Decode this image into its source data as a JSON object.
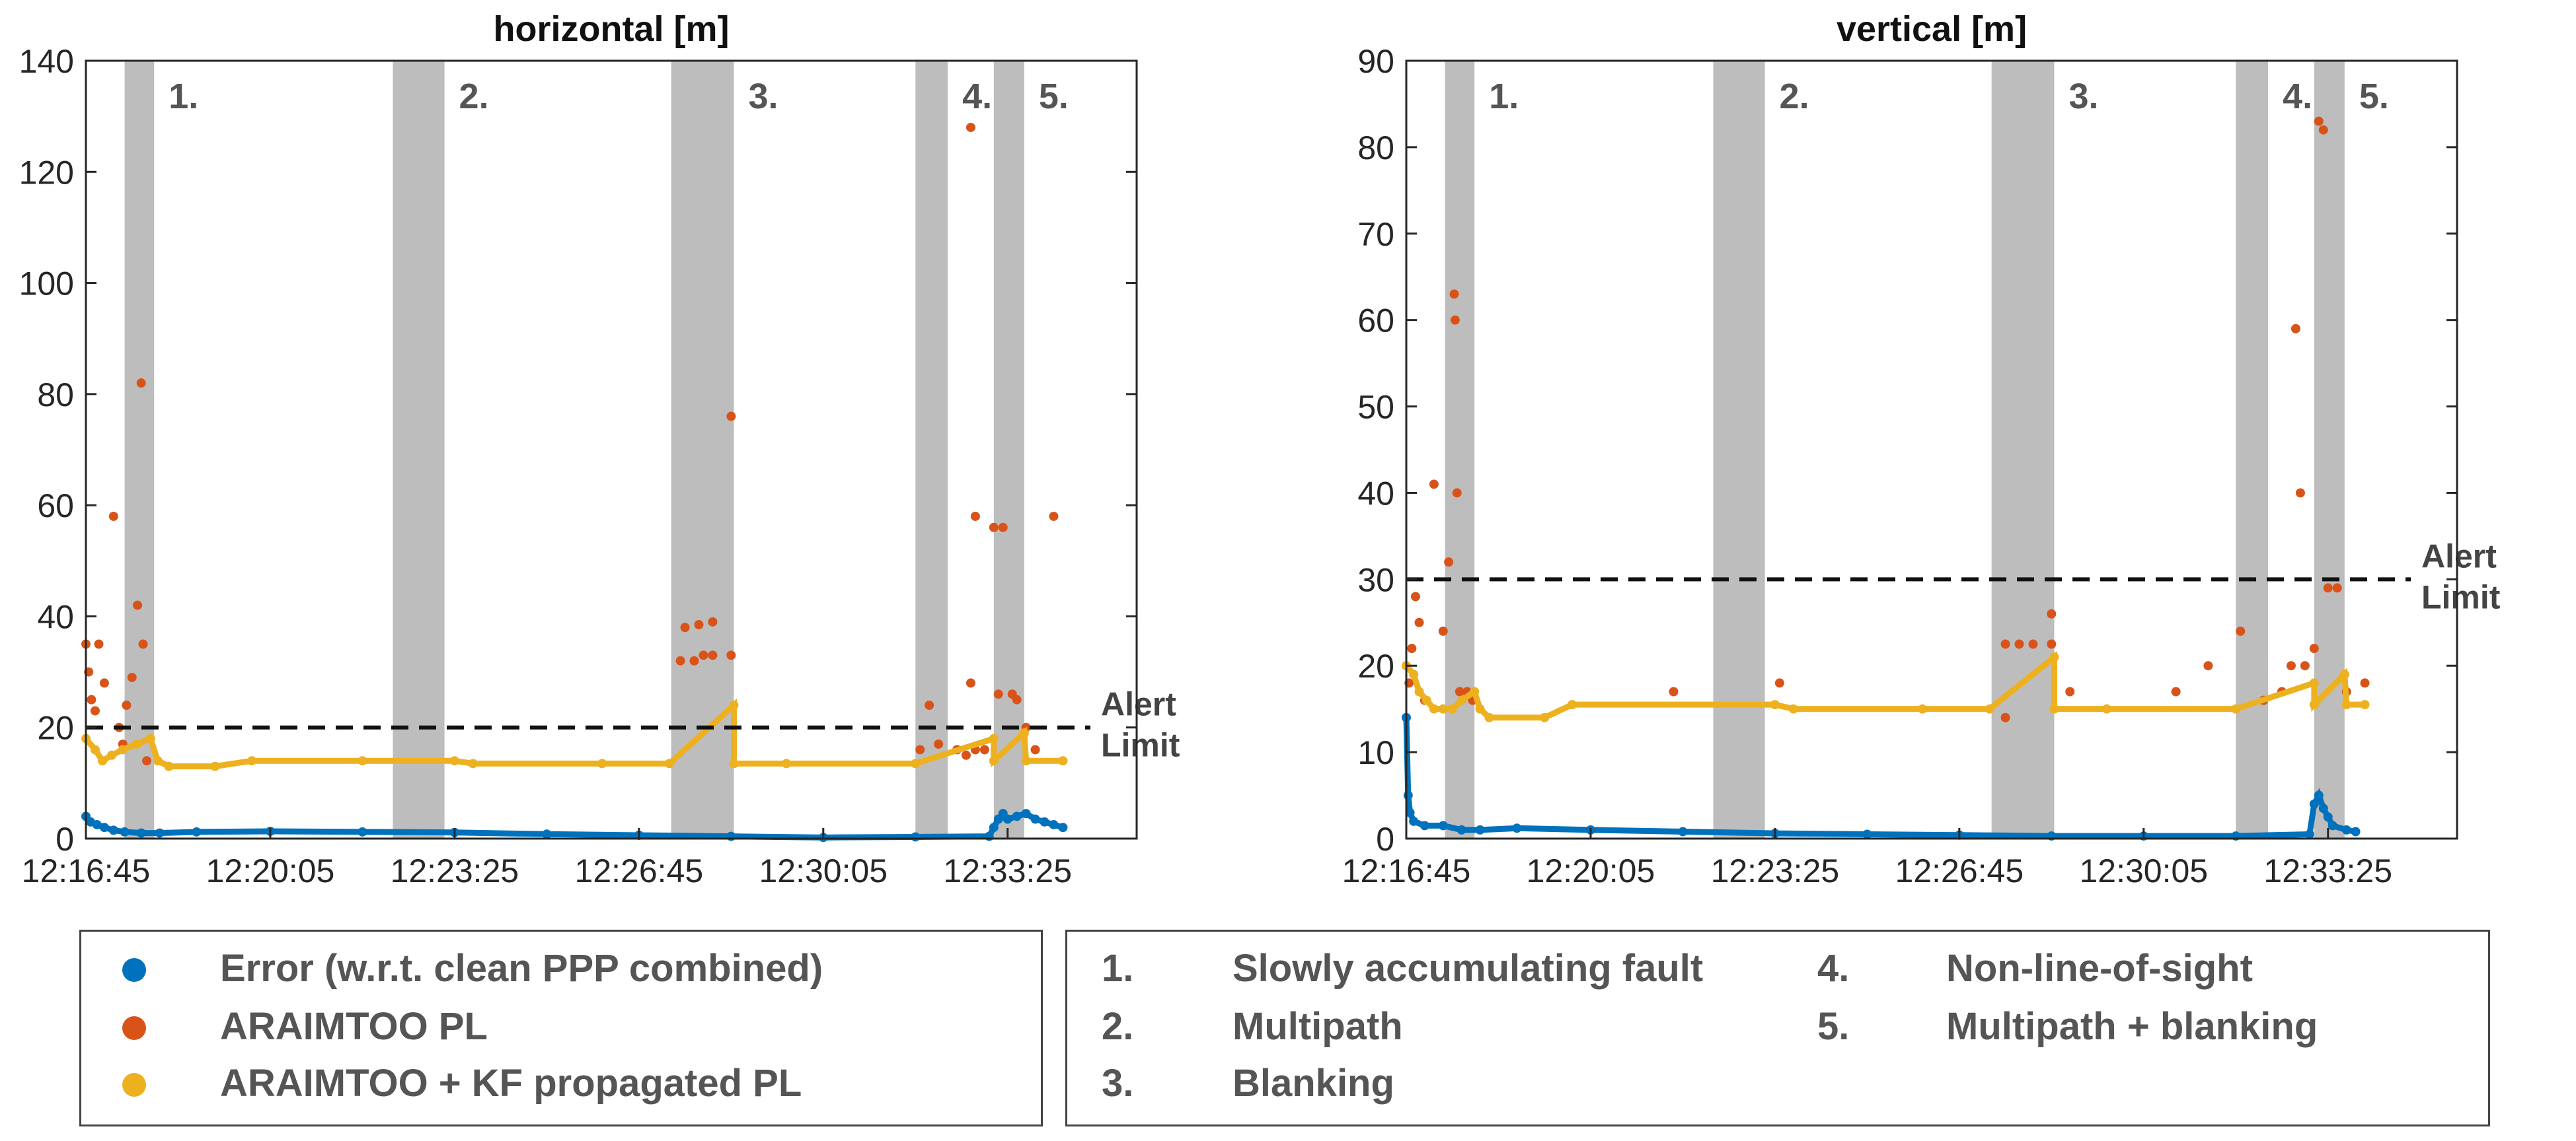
{
  "chart_data": [
    {
      "type": "scatter",
      "title": "horizontal [m]",
      "xlabel": "",
      "ylabel": "",
      "xlim": [
        0,
        1140
      ],
      "ylim": [
        0,
        140
      ],
      "yticks": [
        0,
        20,
        40,
        60,
        80,
        100,
        120,
        140
      ],
      "xticks": [
        {
          "x": 0,
          "label": "12:16:45"
        },
        {
          "x": 200,
          "label": "12:20:05"
        },
        {
          "x": 400,
          "label": "12:23:25"
        },
        {
          "x": 600,
          "label": "12:26:45"
        },
        {
          "x": 800,
          "label": "12:30:05"
        },
        {
          "x": 1000,
          "label": "12:33:25"
        }
      ],
      "alert_limit": {
        "value": 20,
        "label_line1": "Alert",
        "label_line2": "Limit"
      },
      "fault_regions": [
        {
          "label": "1.",
          "x0": 42,
          "x1": 74
        },
        {
          "label": "2.",
          "x0": 333,
          "x1": 389
        },
        {
          "label": "3.",
          "x0": 635,
          "x1": 703
        },
        {
          "label": "4.",
          "x0": 900,
          "x1": 935
        },
        {
          "label": "5.",
          "x0": 985,
          "x1": 1018
        }
      ],
      "series": [
        {
          "name": "Error",
          "color": "#0072BD",
          "points": [
            [
              0,
              4
            ],
            [
              5,
              3
            ],
            [
              12,
              2.5
            ],
            [
              20,
              2
            ],
            [
              30,
              1.5
            ],
            [
              42,
              1.2
            ],
            [
              60,
              1.0
            ],
            [
              80,
              1.0
            ],
            [
              120,
              1.2
            ],
            [
              200,
              1.3
            ],
            [
              300,
              1.2
            ],
            [
              400,
              1.1
            ],
            [
              500,
              0.8
            ],
            [
              600,
              0.6
            ],
            [
              700,
              0.4
            ],
            [
              800,
              0.2
            ],
            [
              900,
              0.3
            ],
            [
              980,
              0.4
            ],
            [
              985,
              2
            ],
            [
              990,
              3.5
            ],
            [
              995,
              4.5
            ],
            [
              1000,
              3.5
            ],
            [
              1010,
              4
            ],
            [
              1020,
              4.5
            ],
            [
              1030,
              3.5
            ],
            [
              1040,
              3
            ],
            [
              1050,
              2.5
            ],
            [
              1060,
              2
            ]
          ]
        },
        {
          "name": "ARAIMTOO PL",
          "color": "#D95319",
          "points": [
            [
              0,
              35
            ],
            [
              3,
              30
            ],
            [
              6,
              25
            ],
            [
              10,
              23
            ],
            [
              14,
              35
            ],
            [
              20,
              28
            ],
            [
              30,
              58
            ],
            [
              36,
              20
            ],
            [
              40,
              17
            ],
            [
              44,
              24
            ],
            [
              50,
              29
            ],
            [
              56,
              42
            ],
            [
              60,
              82
            ],
            [
              62,
              35
            ],
            [
              66,
              14
            ],
            [
              645,
              32
            ],
            [
              660,
              32
            ],
            [
              670,
              33
            ],
            [
              680,
              33
            ],
            [
              700,
              33
            ],
            [
              650,
              38
            ],
            [
              665,
              38.5
            ],
            [
              680,
              39
            ],
            [
              700,
              76
            ],
            [
              905,
              16
            ],
            [
              915,
              24
            ],
            [
              925,
              17
            ],
            [
              945,
              16
            ],
            [
              955,
              15
            ],
            [
              965,
              16
            ],
            [
              975,
              16
            ],
            [
              960,
              128
            ],
            [
              965,
              58
            ],
            [
              960,
              28
            ],
            [
              985,
              56
            ],
            [
              995,
              56
            ],
            [
              990,
              26
            ],
            [
              1005,
              26
            ],
            [
              1010,
              25
            ],
            [
              1020,
              20
            ],
            [
              1030,
              16
            ],
            [
              1050,
              58
            ]
          ]
        },
        {
          "name": "ARAIMTOO + KF propagated PL",
          "color": "#EDB120",
          "points": [
            [
              0,
              18
            ],
            [
              10,
              16
            ],
            [
              18,
              14
            ],
            [
              28,
              15
            ],
            [
              40,
              16
            ],
            [
              55,
              17
            ],
            [
              70,
              18
            ],
            [
              78,
              14
            ],
            [
              90,
              13
            ],
            [
              140,
              13
            ],
            [
              180,
              14
            ],
            [
              300,
              14
            ],
            [
              400,
              14
            ],
            [
              420,
              13.5
            ],
            [
              560,
              13.5
            ],
            [
              633,
              13.5
            ],
            [
              703,
              24
            ],
            [
              703,
              13.5
            ],
            [
              760,
              13.5
            ],
            [
              900,
              13.5
            ],
            [
              985,
              18
            ],
            [
              985,
              14
            ],
            [
              1018,
              19
            ],
            [
              1020,
              14
            ],
            [
              1060,
              14
            ]
          ]
        }
      ]
    },
    {
      "type": "scatter",
      "title": "vertical [m]",
      "xlabel": "",
      "ylabel": "",
      "xlim": [
        0,
        1140
      ],
      "ylim": [
        0,
        90
      ],
      "yticks": [
        0,
        10,
        20,
        30,
        40,
        50,
        60,
        70,
        80,
        90
      ],
      "xticks": [
        {
          "x": 0,
          "label": "12:16:45"
        },
        {
          "x": 200,
          "label": "12:20:05"
        },
        {
          "x": 400,
          "label": "12:23:25"
        },
        {
          "x": 600,
          "label": "12:26:45"
        },
        {
          "x": 800,
          "label": "12:30:05"
        },
        {
          "x": 1000,
          "label": "12:33:25"
        }
      ],
      "alert_limit": {
        "value": 30,
        "label_line1": "Alert",
        "label_line2": "Limit"
      },
      "fault_regions": [
        {
          "label": "1.",
          "x0": 42,
          "x1": 74
        },
        {
          "label": "2.",
          "x0": 333,
          "x1": 389
        },
        {
          "label": "3.",
          "x0": 635,
          "x1": 703
        },
        {
          "label": "4.",
          "x0": 900,
          "x1": 935
        },
        {
          "label": "5.",
          "x0": 985,
          "x1": 1018
        }
      ],
      "series": [
        {
          "name": "Error",
          "color": "#0072BD",
          "points": [
            [
              0,
              14
            ],
            [
              2,
              5
            ],
            [
              4,
              3
            ],
            [
              8,
              2
            ],
            [
              20,
              1.5
            ],
            [
              40,
              1.5
            ],
            [
              60,
              1.0
            ],
            [
              80,
              1.0
            ],
            [
              120,
              1.2
            ],
            [
              200,
              1.0
            ],
            [
              300,
              0.8
            ],
            [
              400,
              0.6
            ],
            [
              500,
              0.5
            ],
            [
              600,
              0.4
            ],
            [
              700,
              0.3
            ],
            [
              800,
              0.3
            ],
            [
              900,
              0.3
            ],
            [
              980,
              0.5
            ],
            [
              985,
              4
            ],
            [
              990,
              5
            ],
            [
              995,
              3.5
            ],
            [
              1000,
              2.5
            ],
            [
              1005,
              1.5
            ],
            [
              1020,
              1
            ],
            [
              1030,
              0.8
            ]
          ]
        },
        {
          "name": "ARAIMTOO PL",
          "color": "#D95319",
          "points": [
            [
              0,
              20
            ],
            [
              3,
              18
            ],
            [
              6,
              22
            ],
            [
              10,
              28
            ],
            [
              14,
              25
            ],
            [
              20,
              16
            ],
            [
              30,
              41
            ],
            [
              40,
              24
            ],
            [
              46,
              32
            ],
            [
              52,
              63
            ],
            [
              53,
              60
            ],
            [
              55,
              40
            ],
            [
              58,
              17
            ],
            [
              66,
              17
            ],
            [
              72,
              16
            ],
            [
              290,
              17
            ],
            [
              405,
              18
            ],
            [
              650,
              22.5
            ],
            [
              665,
              22.5
            ],
            [
              680,
              22.5
            ],
            [
              700,
              22.5
            ],
            [
              700,
              26
            ],
            [
              650,
              14
            ],
            [
              720,
              17
            ],
            [
              835,
              17
            ],
            [
              870,
              20
            ],
            [
              905,
              24
            ],
            [
              930,
              16
            ],
            [
              950,
              17
            ],
            [
              960,
              20
            ],
            [
              965,
              59
            ],
            [
              970,
              40
            ],
            [
              975,
              20
            ],
            [
              985,
              22
            ],
            [
              990,
              83
            ],
            [
              995,
              82
            ],
            [
              1000,
              29
            ],
            [
              1010,
              29
            ],
            [
              1020,
              17
            ],
            [
              1040,
              18
            ]
          ]
        },
        {
          "name": "ARAIMTOO + KF propagated PL",
          "color": "#EDB120",
          "points": [
            [
              0,
              20
            ],
            [
              8,
              19
            ],
            [
              14,
              17
            ],
            [
              22,
              16
            ],
            [
              30,
              15
            ],
            [
              40,
              15
            ],
            [
              50,
              15
            ],
            [
              60,
              16
            ],
            [
              74,
              17
            ],
            [
              80,
              15
            ],
            [
              90,
              14
            ],
            [
              150,
              14
            ],
            [
              180,
              15.5
            ],
            [
              400,
              15.5
            ],
            [
              420,
              15
            ],
            [
              560,
              15
            ],
            [
              633,
              15
            ],
            [
              703,
              21
            ],
            [
              703,
              15
            ],
            [
              760,
              15
            ],
            [
              900,
              15
            ],
            [
              985,
              18
            ],
            [
              985,
              15.5
            ],
            [
              1018,
              19
            ],
            [
              1020,
              15.5
            ],
            [
              1040,
              15.5
            ]
          ]
        }
      ]
    }
  ],
  "legend_series": [
    {
      "label": "Error (w.r.t. clean PPP combined)",
      "color": "#0072BD"
    },
    {
      "label": "ARAIMTOO PL",
      "color": "#D95319"
    },
    {
      "label": "ARAIMTOO + KF propagated PL",
      "color": "#EDB120"
    }
  ],
  "legend_faults": [
    {
      "num": "1.",
      "name": "Slowly accumulating fault"
    },
    {
      "num": "2.",
      "name": "Multipath"
    },
    {
      "num": "3.",
      "name": "Blanking"
    },
    {
      "num": "4.",
      "name": "Non-line-of-sight"
    },
    {
      "num": "5.",
      "name": "Multipath + blanking"
    }
  ]
}
